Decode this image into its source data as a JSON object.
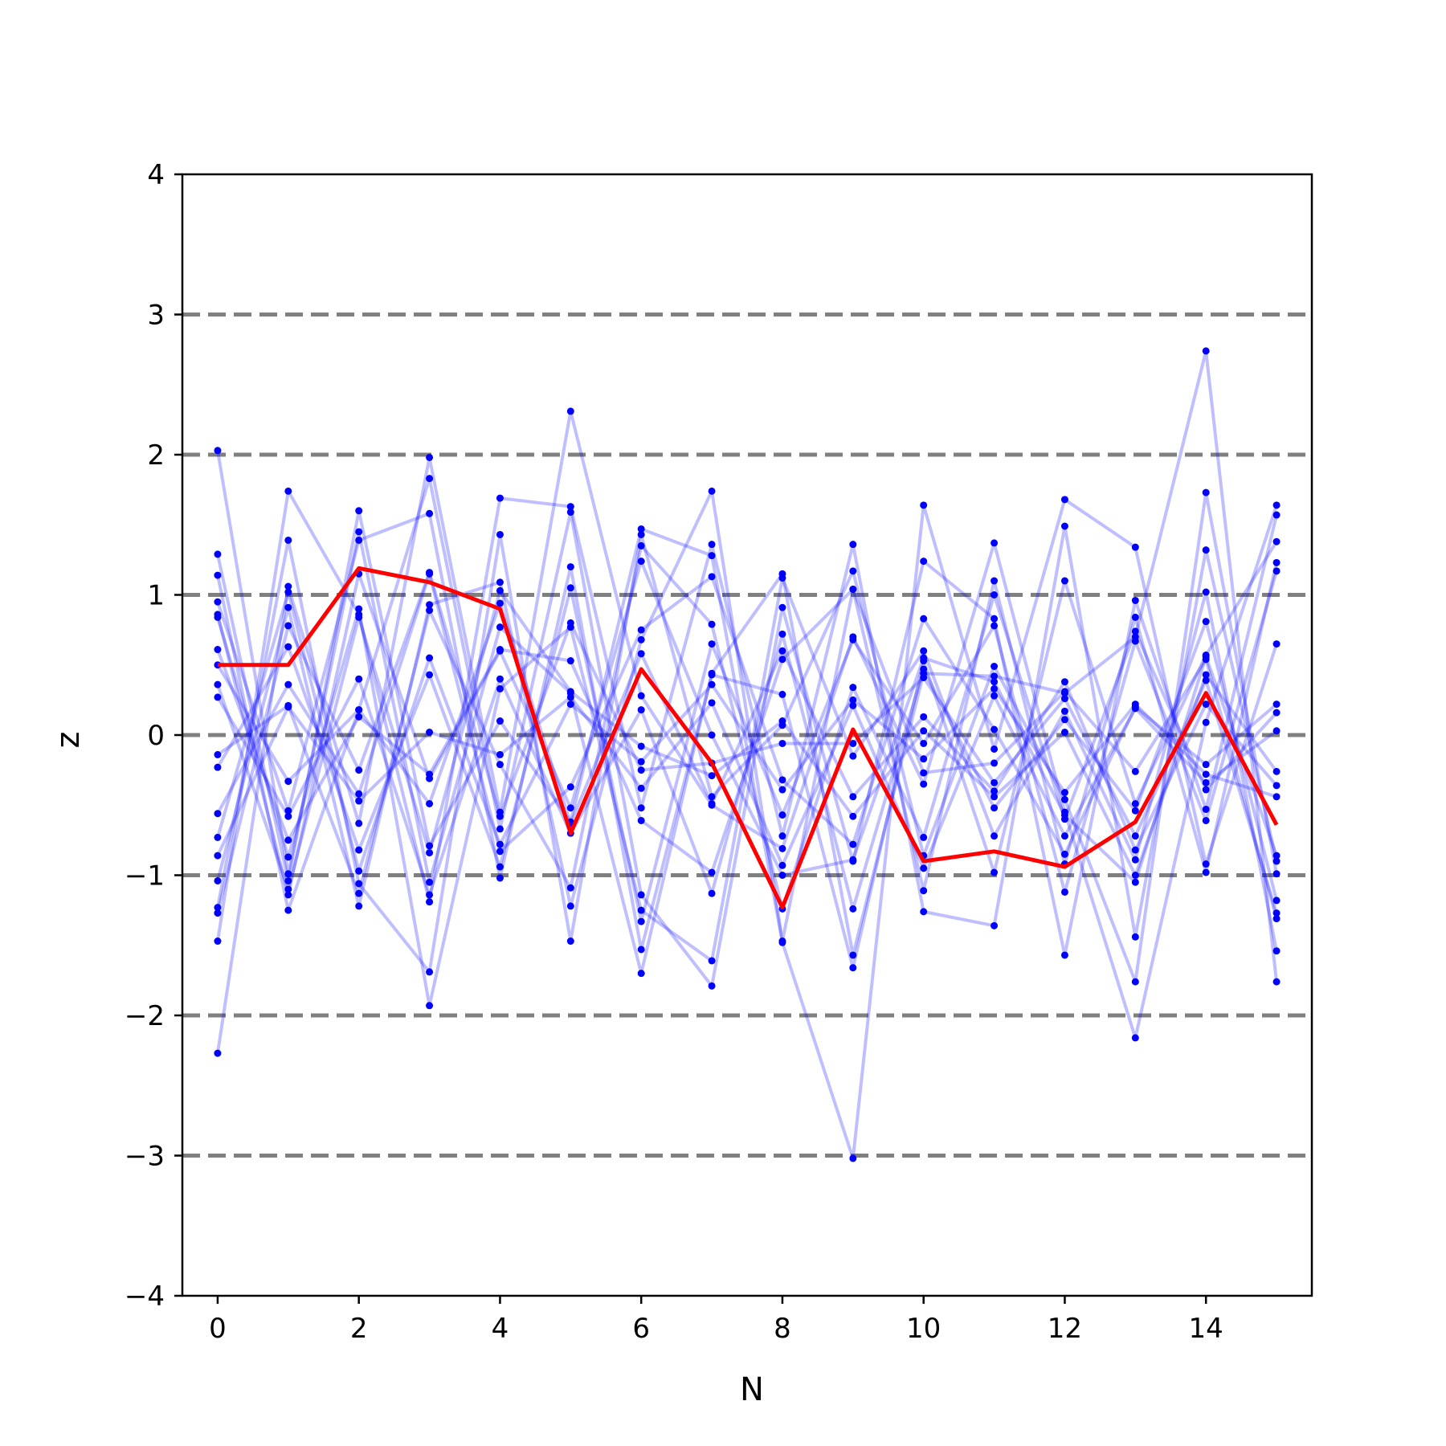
{
  "chart_data": {
    "type": "line",
    "title": "",
    "xlabel": "N",
    "ylabel": "z",
    "xlim": [
      -0.5,
      15.5
    ],
    "ylim": [
      -4,
      4
    ],
    "xticks": [
      0,
      2,
      4,
      6,
      8,
      10,
      12,
      14
    ],
    "xtick_labels": [
      "0",
      "2",
      "4",
      "6",
      "8",
      "10",
      "12",
      "14"
    ],
    "yticks": [
      -4,
      -3,
      -2,
      -1,
      0,
      1,
      2,
      3,
      4
    ],
    "ytick_labels": [
      "−4",
      "−3",
      "−2",
      "−1",
      "0",
      "1",
      "2",
      "3",
      "4"
    ],
    "reference_lines": [
      -3,
      -2,
      -1,
      0,
      1,
      2,
      3
    ],
    "colors": {
      "trials": "#0000ff",
      "mean": "#ff0000",
      "reference": "#808080",
      "axes": "#000000"
    },
    "x": [
      0,
      1,
      2,
      3,
      4,
      5,
      6,
      7,
      8,
      9,
      10,
      11,
      12,
      13,
      14,
      15
    ],
    "mean_series": {
      "values": [
        0.5,
        0.5,
        1.19,
        1.09,
        0.9,
        -0.7,
        0.47,
        -0.2,
        -1.23,
        0.04,
        -0.9,
        -0.83,
        -0.94,
        -0.62,
        0.3,
        -0.64
      ]
    },
    "trial_series": [
      {
        "values": [
          2.03,
          -0.99,
          1.45,
          -1.05,
          0.77,
          0.3,
          -1.7,
          0.44,
          1.15,
          -1.57,
          0.44,
          0.42,
          0.3,
          0.7,
          2.74,
          -1.76
        ]
      },
      {
        "values": [
          -2.27,
          1.06,
          -0.63,
          1.98,
          -0.55,
          2.31,
          0.28,
          -0.5,
          -0.81,
          0.7,
          -0.35,
          1.37,
          -0.55,
          -2.16,
          0.09,
          1.64
        ]
      },
      {
        "values": [
          1.29,
          -1.04,
          1.6,
          -0.79,
          0.1,
          -0.62,
          1.47,
          1.28,
          -1.48,
          -3.02,
          1.64,
          -0.1,
          1.68,
          1.34,
          -0.92,
          0.65
        ]
      },
      {
        "values": [
          -1.47,
          1.74,
          0.86,
          -1.19,
          1.69,
          1.63,
          -0.52,
          1.36,
          -0.72,
          1.36,
          -1.26,
          -1.36,
          1.49,
          -1.44,
          1.32,
          -0.9
        ]
      },
      {
        "values": [
          1.14,
          -1.25,
          0.18,
          1.83,
          -0.67,
          1.59,
          -1.14,
          -1.79,
          0.91,
          -0.9,
          1.24,
          0.83,
          -1.57,
          0.96,
          -0.53,
          1.57
        ]
      },
      {
        "values": [
          -1.23,
          1.39,
          -1.06,
          -1.69,
          1.43,
          -1.47,
          1.43,
          -0.44,
          0.07,
          1.17,
          -0.86,
          0.49,
          -0.46,
          -1.76,
          1.73,
          -0.99
        ]
      },
      {
        "values": [
          0.95,
          -0.54,
          1.39,
          1.58,
          -1.02,
          1.2,
          -1.53,
          0.43,
          0.29,
          -1.66,
          0.53,
          -0.98,
          1.1,
          -0.49,
          0.57,
          1.38
        ]
      },
      {
        "values": [
          -1.04,
          0.91,
          -1.22,
          0.93,
          1.09,
          -1.22,
          0.68,
          1.74,
          -1.47,
          1.04,
          -1.11,
          1.1,
          -0.92,
          0.84,
          -0.98,
          1.23
        ]
      },
      {
        "values": [
          0.84,
          -0.87,
          0.9,
          -1.93,
          0.33,
          0.77,
          -1.25,
          -1.61,
          1.12,
          -0.15,
          0.6,
          -0.72,
          0.17,
          -0.89,
          1.02,
          -1.54
        ]
      },
      {
        "values": [
          -0.56,
          0.36,
          -0.42,
          1.15,
          -0.83,
          -0.37,
          0.75,
          1.13,
          -0.32,
          -0.78,
          0.83,
          0.04,
          -0.85,
          0.2,
          -0.21,
          0.22
        ]
      },
      {
        "values": [
          0.61,
          -0.75,
          0.13,
          -0.28,
          0.61,
          0.53,
          -0.61,
          -0.98,
          0.54,
          1.04,
          -0.27,
          -0.2,
          0.31,
          -0.26,
          0.54,
          -1.31
        ]
      },
      {
        "values": [
          -0.14,
          0.21,
          -1.13,
          0.89,
          -0.21,
          -1.09,
          1.35,
          0.79,
          -1.24,
          0.34,
          -0.73,
          1.0,
          -0.6,
          0.74,
          -0.39,
          0.16
        ]
      },
      {
        "values": [
          0.36,
          -1.1,
          0.84,
          -0.84,
          1.03,
          0.31,
          -0.08,
          -0.29,
          0.1,
          -0.58,
          0.03,
          -0.44,
          0.02,
          -1.0,
          0.43,
          -0.26
        ]
      },
      {
        "values": [
          -0.23,
          0.63,
          -0.82,
          0.43,
          -0.94,
          1.05,
          -1.33,
          0.65,
          -0.57,
          0.68,
          -0.06,
          0.78,
          -1.12,
          0.67,
          -0.61,
          1.17
        ]
      },
      {
        "values": [
          0.27,
          -0.58,
          0.4,
          -1.14,
          0.4,
          -0.7,
          0.18,
          -1.13,
          0.72,
          -1.24,
          0.47,
          -0.52,
          0.11,
          -0.54,
          0.81,
          -1.18
        ]
      },
      {
        "values": [
          -0.86,
          0.2,
          -0.47,
          0.02,
          -0.14,
          0.27,
          -0.38,
          0.23,
          -0.93,
          0.21,
          -0.95,
          0.28,
          -0.72,
          0.19,
          -0.34,
          0.03
        ]
      },
      {
        "values": [
          0.5,
          -0.33,
          0.18,
          -0.49,
          0.94,
          -0.63,
          0.58,
          -0.49,
          0.6,
          -0.44,
          0.13,
          -0.4,
          0.38,
          -0.82,
          0.22,
          -0.36
        ]
      },
      {
        "values": [
          -0.73,
          1.02,
          -0.97,
          0.55,
          -0.78,
          0.22,
          -0.19,
          0.36,
          -0.39,
          0.25,
          -0.17,
          0.33,
          -0.41,
          0.22,
          -0.28,
          -0.44
        ]
      },
      {
        "values": [
          0.86,
          -1.14,
          1.15,
          -0.31,
          0.6,
          -0.52,
          1.24,
          0.0,
          -1.0,
          -0.89,
          0.55,
          0.38,
          -0.57,
          -1.05,
          0.56,
          -0.86
        ]
      },
      {
        "values": [
          -1.27,
          0.78,
          -0.25,
          1.16,
          -0.58,
          0.8,
          -0.25,
          -0.2,
          -0.06,
          -0.06,
          0.41,
          -0.34,
          0.26,
          -0.72,
          0.39,
          -1.27
        ]
      }
    ]
  }
}
